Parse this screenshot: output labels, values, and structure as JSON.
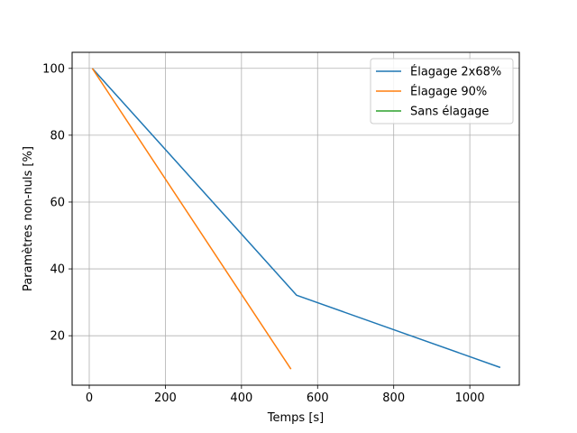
{
  "chart_data": {
    "type": "line",
    "xlabel": "Temps [s]",
    "ylabel": "Paramètres non-nuls [%]",
    "xlim": [
      -45,
      1130
    ],
    "ylim": [
      5.2,
      104.8
    ],
    "xticks": [
      0,
      200,
      400,
      600,
      800,
      1000
    ],
    "yticks": [
      20,
      40,
      60,
      80,
      100
    ],
    "grid": true,
    "legend_position": "top-right",
    "series": [
      {
        "name": "Élagage 2x68%",
        "color": "#1f77b4",
        "points": [
          [
            8,
            100
          ],
          [
            545,
            32.1
          ],
          [
            1080,
            10.5
          ]
        ]
      },
      {
        "name": "Élagage 90%",
        "color": "#ff7f0e",
        "points": [
          [
            8,
            100
          ],
          [
            530,
            10
          ]
        ]
      },
      {
        "name": "Sans élagage",
        "color": "#2ca02c",
        "points": []
      }
    ]
  }
}
